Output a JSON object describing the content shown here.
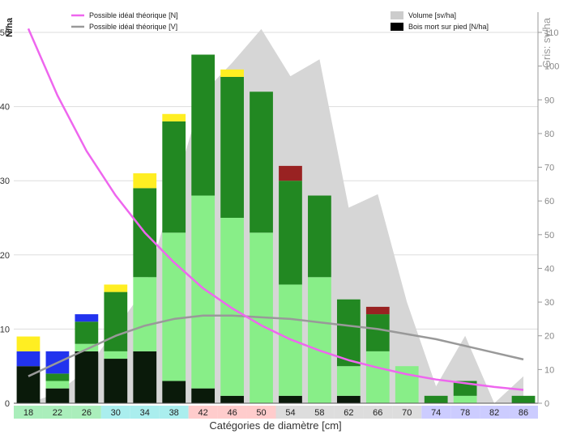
{
  "chart_data": {
    "type": "bar",
    "xlabel": "Catégories de diamètre [cm]",
    "ylabel_left": "N/ha",
    "ylabel_right": "Gris: sv/ha",
    "ylim_left": [
      0,
      50
    ],
    "ylim_right": [
      0,
      110
    ],
    "yticks_left": [
      "0",
      "10",
      "20",
      "30",
      "40",
      "50"
    ],
    "yticks_right": [
      "0",
      "10",
      "20",
      "30",
      "40",
      "50",
      "60",
      "70",
      "80",
      "90",
      "100",
      "110"
    ],
    "grid": true,
    "legend": [
      {
        "label": "Possible idéal théorique [N]",
        "color": "#ee66ee",
        "kind": "line"
      },
      {
        "label": "Possible idéal théorique [V]",
        "color": "#999999",
        "kind": "line"
      },
      {
        "label": "Volume [sv/ha]",
        "color": "#cccccc",
        "kind": "box"
      },
      {
        "label": "Bois mort sur pied [N/ha]",
        "color": "#000000",
        "kind": "box"
      }
    ],
    "categories": [
      "18",
      "22",
      "26",
      "30",
      "34",
      "38",
      "42",
      "46",
      "50",
      "54",
      "58",
      "62",
      "66",
      "70",
      "74",
      "78",
      "82",
      "86"
    ],
    "category_band_colors": [
      "#aaeebb",
      "#aaeebb",
      "#aaeebb",
      "#aaeeee",
      "#aaeeee",
      "#aaeeee",
      "#ffcccc",
      "#ffcccc",
      "#ffcccc",
      "#dddddd",
      "#dddddd",
      "#dddddd",
      "#dddddd",
      "#dddddd",
      "#ccccff",
      "#ccccff",
      "#ccccff",
      "#ccccff"
    ],
    "series": [
      {
        "color": "#0a1a0a",
        "values": [
          5,
          2,
          7,
          6,
          7,
          3,
          2,
          1,
          0,
          1,
          0,
          1,
          0,
          0,
          0,
          0,
          0,
          0
        ]
      },
      {
        "color": "#88ee88",
        "values": [
          0,
          1,
          1,
          1,
          10,
          20,
          26,
          24,
          23,
          15,
          17,
          4,
          7,
          5,
          0,
          1,
          0,
          0
        ]
      },
      {
        "color": "#228822",
        "values": [
          0,
          1,
          3,
          8,
          12,
          15,
          19,
          19,
          19,
          14,
          11,
          9,
          5,
          0,
          1,
          2,
          0,
          1
        ]
      },
      {
        "color": "#2233ee",
        "values": [
          2,
          3,
          1,
          0,
          0,
          0,
          0,
          0,
          0,
          0,
          0,
          0,
          0,
          0,
          0,
          0,
          0,
          0
        ]
      },
      {
        "color": "#ffee22",
        "values": [
          2,
          0,
          0,
          1,
          2,
          1,
          0,
          1,
          0,
          0,
          0,
          0,
          0,
          0,
          0,
          0,
          0,
          0
        ]
      },
      {
        "color": "#992222",
        "values": [
          0,
          0,
          0,
          0,
          0,
          0,
          0,
          0,
          0,
          2,
          0,
          0,
          1,
          0,
          0,
          0,
          0,
          0
        ]
      }
    ],
    "volume_area": {
      "x": [
        "18",
        "22",
        "26",
        "30",
        "34",
        "38",
        "42",
        "46",
        "50",
        "54",
        "58",
        "62",
        "66",
        "70",
        "74",
        "78",
        "82",
        "86"
      ],
      "values": [
        0,
        3,
        10,
        22,
        34,
        63,
        92,
        101,
        111,
        97,
        102,
        58,
        62,
        30,
        5,
        20,
        0,
        8
      ]
    },
    "ideal_N": {
      "x": [
        "18",
        "22",
        "26",
        "30",
        "34",
        "38",
        "42",
        "46",
        "50",
        "54",
        "58",
        "62",
        "66",
        "70",
        "74",
        "78",
        "82",
        "86"
      ],
      "values": [
        50.5,
        41.5,
        34,
        28,
        23,
        19,
        15.5,
        12.8,
        10.5,
        8.6,
        7.1,
        5.8,
        4.8,
        3.9,
        3.2,
        2.7,
        2.2,
        1.8
      ]
    },
    "ideal_V": {
      "x": [
        "18",
        "22",
        "26",
        "30",
        "34",
        "38",
        "42",
        "46",
        "50",
        "54",
        "58",
        "62",
        "66",
        "70",
        "74",
        "78",
        "82",
        "86"
      ],
      "values": [
        8,
        12,
        16,
        20,
        23,
        25,
        26,
        26,
        25.5,
        25,
        24,
        23,
        22,
        20.5,
        19,
        17,
        15,
        13
      ]
    }
  }
}
